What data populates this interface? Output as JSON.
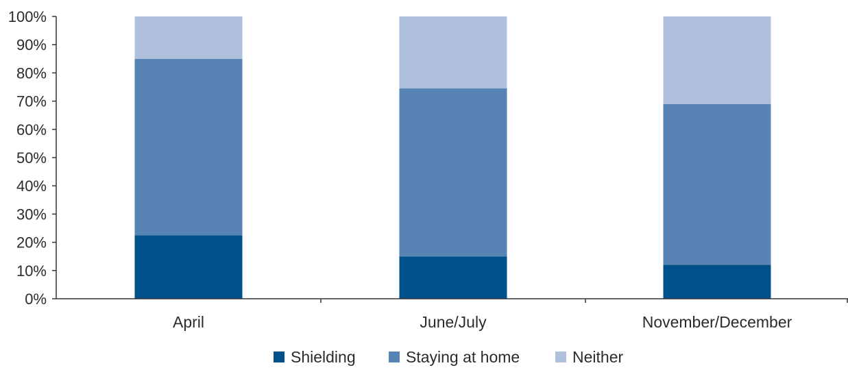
{
  "chart_data": {
    "type": "bar",
    "stacked": true,
    "categories": [
      "April",
      "June/July",
      "November/December"
    ],
    "series": [
      {
        "name": "Shielding",
        "values": [
          22.5,
          15,
          12
        ]
      },
      {
        "name": "Staying at home",
        "values": [
          62.5,
          59.5,
          57
        ]
      },
      {
        "name": "Neither",
        "values": [
          15,
          25.5,
          31
        ]
      }
    ],
    "ylim": [
      0,
      100
    ],
    "yticks": [
      "0%",
      "10%",
      "20%",
      "30%",
      "40%",
      "50%",
      "60%",
      "70%",
      "80%",
      "90%",
      "100%"
    ],
    "xlabel": "",
    "ylabel": "",
    "grid": false,
    "legend_position": "bottom"
  },
  "colors": {
    "Shielding": "#00508a",
    "Staying at home": "#5784b5",
    "Neither": "#aec0dc",
    "axis": "#333333"
  }
}
